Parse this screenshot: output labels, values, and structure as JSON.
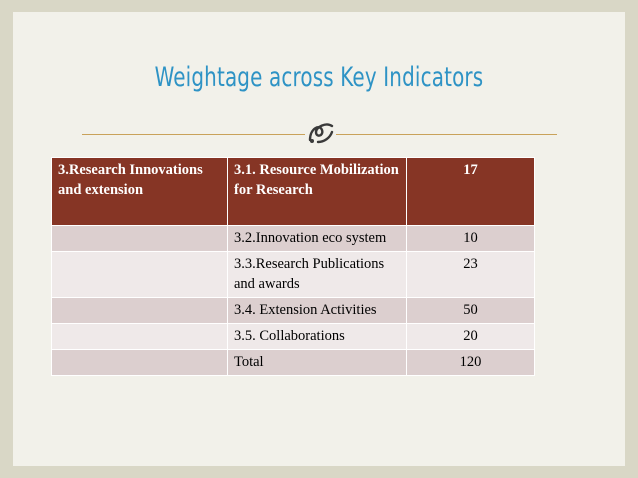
{
  "slide": {
    "title": "Weightage across Key Indicators",
    "ornament_icon": "swirl-ornament-icon",
    "accent_color": "#863525",
    "title_color": "#2e93c5"
  },
  "table": {
    "header": {
      "criterion": "3.Research Innovations and extension",
      "indicator": "3.1. Resource Mobilization for Research",
      "weight": "17"
    },
    "rows": [
      {
        "criterion": "",
        "indicator": "3.2.Innovation eco system",
        "weight": "10"
      },
      {
        "criterion": "",
        "indicator": "3.3.Research Publications and awards",
        "weight": "23"
      },
      {
        "criterion": "",
        "indicator": "3.4. Extension Activities",
        "weight": "50"
      },
      {
        "criterion": "",
        "indicator": "3.5. Collaborations",
        "weight": "20"
      },
      {
        "criterion": "",
        "indicator": "Total",
        "weight": "120"
      }
    ]
  }
}
